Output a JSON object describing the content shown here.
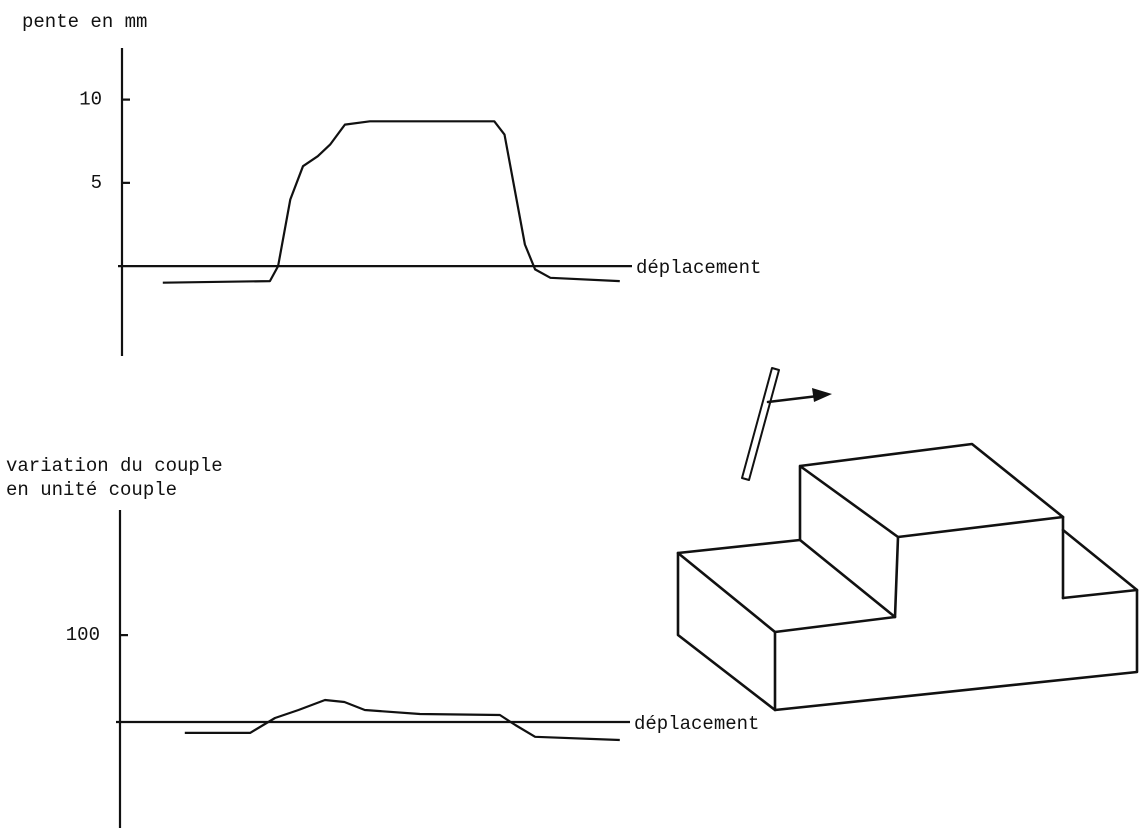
{
  "chart_data": [
    {
      "type": "line",
      "ylabel": [
        "pente en mm"
      ],
      "xlabel": "déplacement",
      "xlim": [
        0,
        100
      ],
      "ylim": [
        -5.4,
        13.1
      ],
      "yticks": [
        5,
        10
      ],
      "color": "#111111",
      "x": [
        8,
        29,
        30.6,
        33,
        35.5,
        38.4,
        40.8,
        43.7,
        48.6,
        73,
        75,
        77,
        79,
        81,
        84,
        97.6
      ],
      "values": [
        -1.0,
        -0.9,
        0,
        4.0,
        6.0,
        6.6,
        7.3,
        8.5,
        8.7,
        8.7,
        7.9,
        4.6,
        1.3,
        -0.2,
        -0.7,
        -0.9
      ]
    },
    {
      "type": "line",
      "ylabel": [
        "variation du couple",
        "en unité couple"
      ],
      "xlabel": "déplacement",
      "xlim": [
        0,
        100
      ],
      "ylim": [
        -122,
        244
      ],
      "yticks": [
        100
      ],
      "color": "#111111",
      "x": [
        12.7,
        25.5,
        30.4,
        35,
        40.2,
        44,
        48,
        58.8,
        74.5,
        77.5,
        81.4,
        98
      ],
      "values": [
        -12.6,
        -12.6,
        4.6,
        13.8,
        25.3,
        23,
        13.8,
        9.2,
        8,
        -3.4,
        -17,
        -20.7
      ]
    }
  ]
}
